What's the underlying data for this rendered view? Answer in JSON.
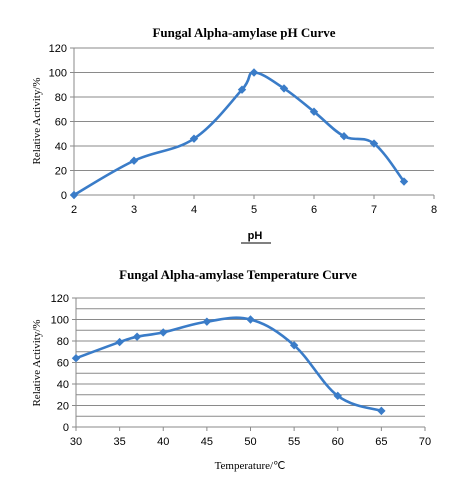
{
  "chart_data": [
    {
      "type": "line",
      "title": "Fungal Alpha-amylase pH Curve",
      "xlabel": "pH",
      "ylabel": "Relative Activity/%",
      "xlim": [
        2,
        8
      ],
      "ylim": [
        0,
        120
      ],
      "xticks": [
        2,
        3,
        4,
        5,
        6,
        7,
        8
      ],
      "yticks": [
        0,
        20,
        40,
        60,
        80,
        100,
        120
      ],
      "grid": true,
      "color": "#3a7cc8",
      "series": [
        {
          "x": [
            2,
            3,
            4,
            4.8,
            5,
            5.5,
            6,
            6.5,
            7,
            7.5
          ],
          "y": [
            0,
            28,
            46,
            86,
            100,
            87,
            68,
            48,
            42,
            11
          ]
        }
      ]
    },
    {
      "type": "line",
      "title": "Fungal Alpha-amylase Temperature Curve",
      "xlabel": "Temperature/℃",
      "ylabel": "Relative Activity/%",
      "xlim": [
        30,
        70
      ],
      "ylim": [
        0,
        120
      ],
      "xticks": [
        30,
        35,
        40,
        45,
        50,
        55,
        60,
        65,
        70
      ],
      "yticks": [
        0,
        10,
        20,
        30,
        40,
        50,
        60,
        70,
        80,
        90,
        100,
        110,
        120
      ],
      "ytick_labels": [
        0,
        20,
        40,
        60,
        80,
        100,
        120
      ],
      "grid": true,
      "color": "#3a7cc8",
      "series": [
        {
          "x": [
            30,
            35,
            37,
            40,
            45,
            50,
            55,
            60,
            65
          ],
          "y": [
            64,
            79,
            84,
            88,
            98,
            100,
            76,
            29,
            15
          ]
        }
      ]
    }
  ]
}
